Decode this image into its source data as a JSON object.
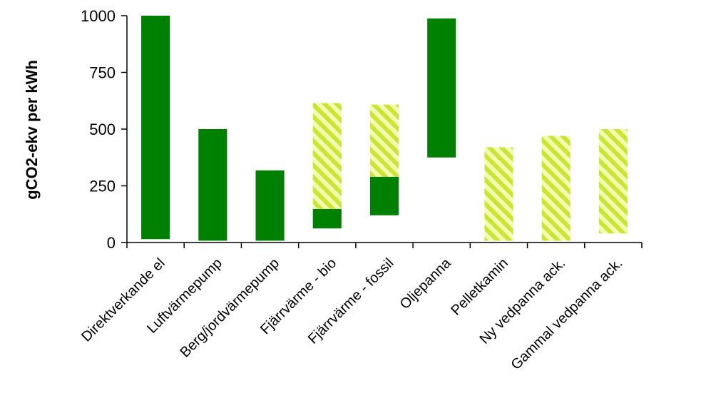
{
  "chart_data": {
    "type": "bar",
    "subtype": "floating-range",
    "title": "",
    "xlabel": "",
    "ylabel": "gCO2-ekv per kWh",
    "ylim": [
      0,
      1000
    ],
    "yticks": [
      0,
      250,
      500,
      750,
      1000
    ],
    "grid": false,
    "legend": "none",
    "colors": {
      "solid": "#008000",
      "hatch_fg": "#c8e633",
      "hatch_bg": "#f4ffb0"
    },
    "categories": [
      "Direktverkande el",
      "Luftvärmepump",
      "Berg/jordvärmepump",
      "Fjärrvärme - bio",
      "Fjärrvärme - fossil",
      "Oljepanna",
      "Pelletkamin",
      "Ny vedpanna ack.",
      "Gammal vedpanna ack."
    ],
    "series": [
      {
        "style": "solid",
        "ranges": [
          [
            15,
            1000
          ],
          [
            8,
            500
          ],
          [
            8,
            318
          ],
          [
            62,
            148
          ],
          [
            120,
            290
          ],
          [
            375,
            988
          ],
          null,
          null,
          null
        ]
      },
      {
        "style": "hatched",
        "ranges": [
          null,
          null,
          null,
          [
            148,
            615
          ],
          [
            290,
            608
          ],
          null,
          [
            8,
            420
          ],
          [
            8,
            470
          ],
          [
            40,
            500
          ]
        ]
      }
    ]
  }
}
